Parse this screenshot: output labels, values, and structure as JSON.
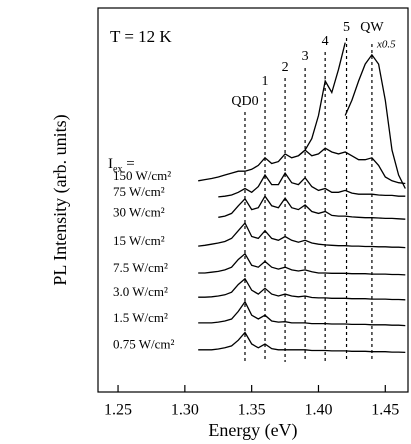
{
  "chart_data": {
    "type": "line",
    "annotation_temperature": "T = 12 K",
    "ylabel": "PL Intensity (arb. units)",
    "xlabel": "Energy (eV)",
    "iex_label": {
      "symbol": "I",
      "subscript": "ex",
      "suffix": " ="
    },
    "scale_note": "x0.5",
    "xlim": [
      1.235,
      1.467
    ],
    "xticks": [
      1.25,
      {
        "value": 1.3,
        "label": "1.30"
      },
      1.35,
      {
        "value": 1.4,
        "label": "1.40"
      },
      1.45
    ],
    "ylim": [
      0,
      100
    ],
    "peaks": [
      {
        "label": "QD0",
        "energy": 1.345
      },
      {
        "label": "1",
        "energy": 1.36
      },
      {
        "label": "2",
        "energy": 1.375
      },
      {
        "label": "3",
        "energy": 1.39
      },
      {
        "label": "4",
        "energy": 1.405
      },
      {
        "label": "5",
        "energy": 1.421
      },
      {
        "label": "QW",
        "energy": 1.44
      }
    ],
    "x": [
      1.31,
      1.315,
      1.32,
      1.325,
      1.33,
      1.335,
      1.34,
      1.345,
      1.35,
      1.355,
      1.36,
      1.365,
      1.37,
      1.375,
      1.38,
      1.385,
      1.39,
      1.395,
      1.4,
      1.405,
      1.41,
      1.415,
      1.42,
      1.425,
      1.43,
      1.435,
      1.44,
      1.445,
      1.45,
      1.455,
      1.46,
      1.465
    ],
    "series": [
      {
        "name": "0.75 W/cm²",
        "color": "#000000",
        "values": [
          11,
          11,
          11,
          11.2,
          11.5,
          12,
          13.5,
          15.5,
          12.5,
          11.5,
          12.5,
          11.3,
          11,
          11,
          11,
          11,
          11,
          10.8,
          10.8,
          10.8,
          10.7,
          10.7,
          10.7,
          10.6,
          10.6,
          10.6,
          10.5,
          10.5,
          10.5,
          10.4,
          10.4,
          10.3
        ]
      },
      {
        "name": "1.5 W/cm²",
        "color": "#000000",
        "values": [
          18,
          18,
          18,
          18.2,
          18.5,
          19,
          21,
          23.5,
          20,
          19,
          20,
          18.5,
          18.2,
          18.3,
          18,
          18,
          18,
          17.8,
          17.8,
          17.8,
          17.7,
          17.7,
          17.7,
          17.6,
          17.6,
          17.6,
          17.5,
          17.5,
          17.5,
          17.4,
          17.4,
          17.3
        ]
      },
      {
        "name": "3.0 W/cm²",
        "color": "#000000",
        "values": [
          24.7,
          24.7,
          24.8,
          25,
          25.3,
          26,
          28,
          29.5,
          26.5,
          25.5,
          27,
          25.5,
          25,
          25.5,
          25,
          24.8,
          25,
          24.6,
          24.5,
          24.5,
          24.4,
          24.4,
          24.4,
          24.3,
          24.3,
          24.3,
          24.2,
          24.2,
          24.2,
          24.1,
          24.1,
          24
        ]
      },
      {
        "name": "7.5 W/cm²",
        "color": "#000000",
        "values": [
          31,
          31,
          31.2,
          31.4,
          31.8,
          32.5,
          34.5,
          36,
          33,
          32.5,
          34,
          32.5,
          32,
          32.5,
          31.8,
          31.5,
          31.8,
          31.3,
          31,
          31,
          30.9,
          30.9,
          30.9,
          30.8,
          30.8,
          30.8,
          30.7,
          30.7,
          30.7,
          30.6,
          30.6,
          30.5
        ]
      },
      {
        "name": "15 W/cm²",
        "color": "#000000",
        "values": [
          38,
          38.2,
          38.5,
          38.8,
          39.2,
          40,
          42,
          44,
          40.5,
          40,
          42,
          40,
          39.5,
          40.5,
          39.5,
          39,
          39.5,
          38.8,
          38.5,
          38.3,
          38.2,
          38.1,
          38.1,
          38,
          38,
          37.9,
          37.9,
          37.8,
          37.8,
          37.7,
          37.7,
          37.6
        ]
      },
      {
        "name": "30 W/cm²",
        "color": "#000000",
        "values": [
          null,
          null,
          null,
          45.5,
          45.8,
          46.5,
          48.5,
          50.3,
          47.5,
          48,
          51,
          48.5,
          48,
          50.5,
          48,
          47.5,
          48.7,
          47,
          46.5,
          47,
          46,
          45.8,
          45.8,
          45.6,
          45.5,
          45.4,
          45.4,
          45.3,
          45.2,
          45.2,
          45.1,
          45
        ]
      },
      {
        "name": "75 W/cm²",
        "color": "#000000",
        "values": [
          null,
          null,
          null,
          50.8,
          51,
          51.3,
          52,
          53,
          52,
          53.5,
          56.5,
          54,
          54,
          57,
          54.5,
          54,
          55.8,
          53.5,
          52.5,
          53,
          52,
          52,
          52.5,
          51.8,
          51.5,
          51.5,
          51.5,
          51.3,
          51.2,
          51.2,
          51,
          51
        ]
      },
      {
        "name": "150 W/cm²",
        "color": "#000000",
        "values": [
          55,
          55.3,
          55.6,
          56,
          56.5,
          57,
          57.5,
          57.5,
          58,
          59,
          61,
          59.5,
          60,
          62,
          61,
          61.5,
          63,
          61.5,
          62,
          63.5,
          62.5,
          62,
          62.5,
          61.5,
          60.5,
          60.5,
          61,
          59,
          56,
          55,
          54.5,
          54.3
        ]
      },
      {
        "color": "#000000",
        "values": [
          null,
          null,
          null,
          null,
          null,
          null,
          null,
          null,
          null,
          null,
          null,
          null,
          null,
          null,
          null,
          61.5,
          63,
          66,
          72,
          81,
          78,
          84,
          91,
          null,
          null,
          null,
          null,
          null,
          null,
          null,
          null,
          null
        ]
      },
      {
        "color": "#000000",
        "values": [
          null,
          null,
          null,
          null,
          null,
          null,
          null,
          null,
          null,
          null,
          null,
          null,
          null,
          null,
          null,
          null,
          null,
          null,
          null,
          null,
          null,
          null,
          72,
          76,
          81,
          85.4,
          87.8,
          85.4,
          76,
          63,
          56.5,
          53
        ]
      }
    ]
  }
}
